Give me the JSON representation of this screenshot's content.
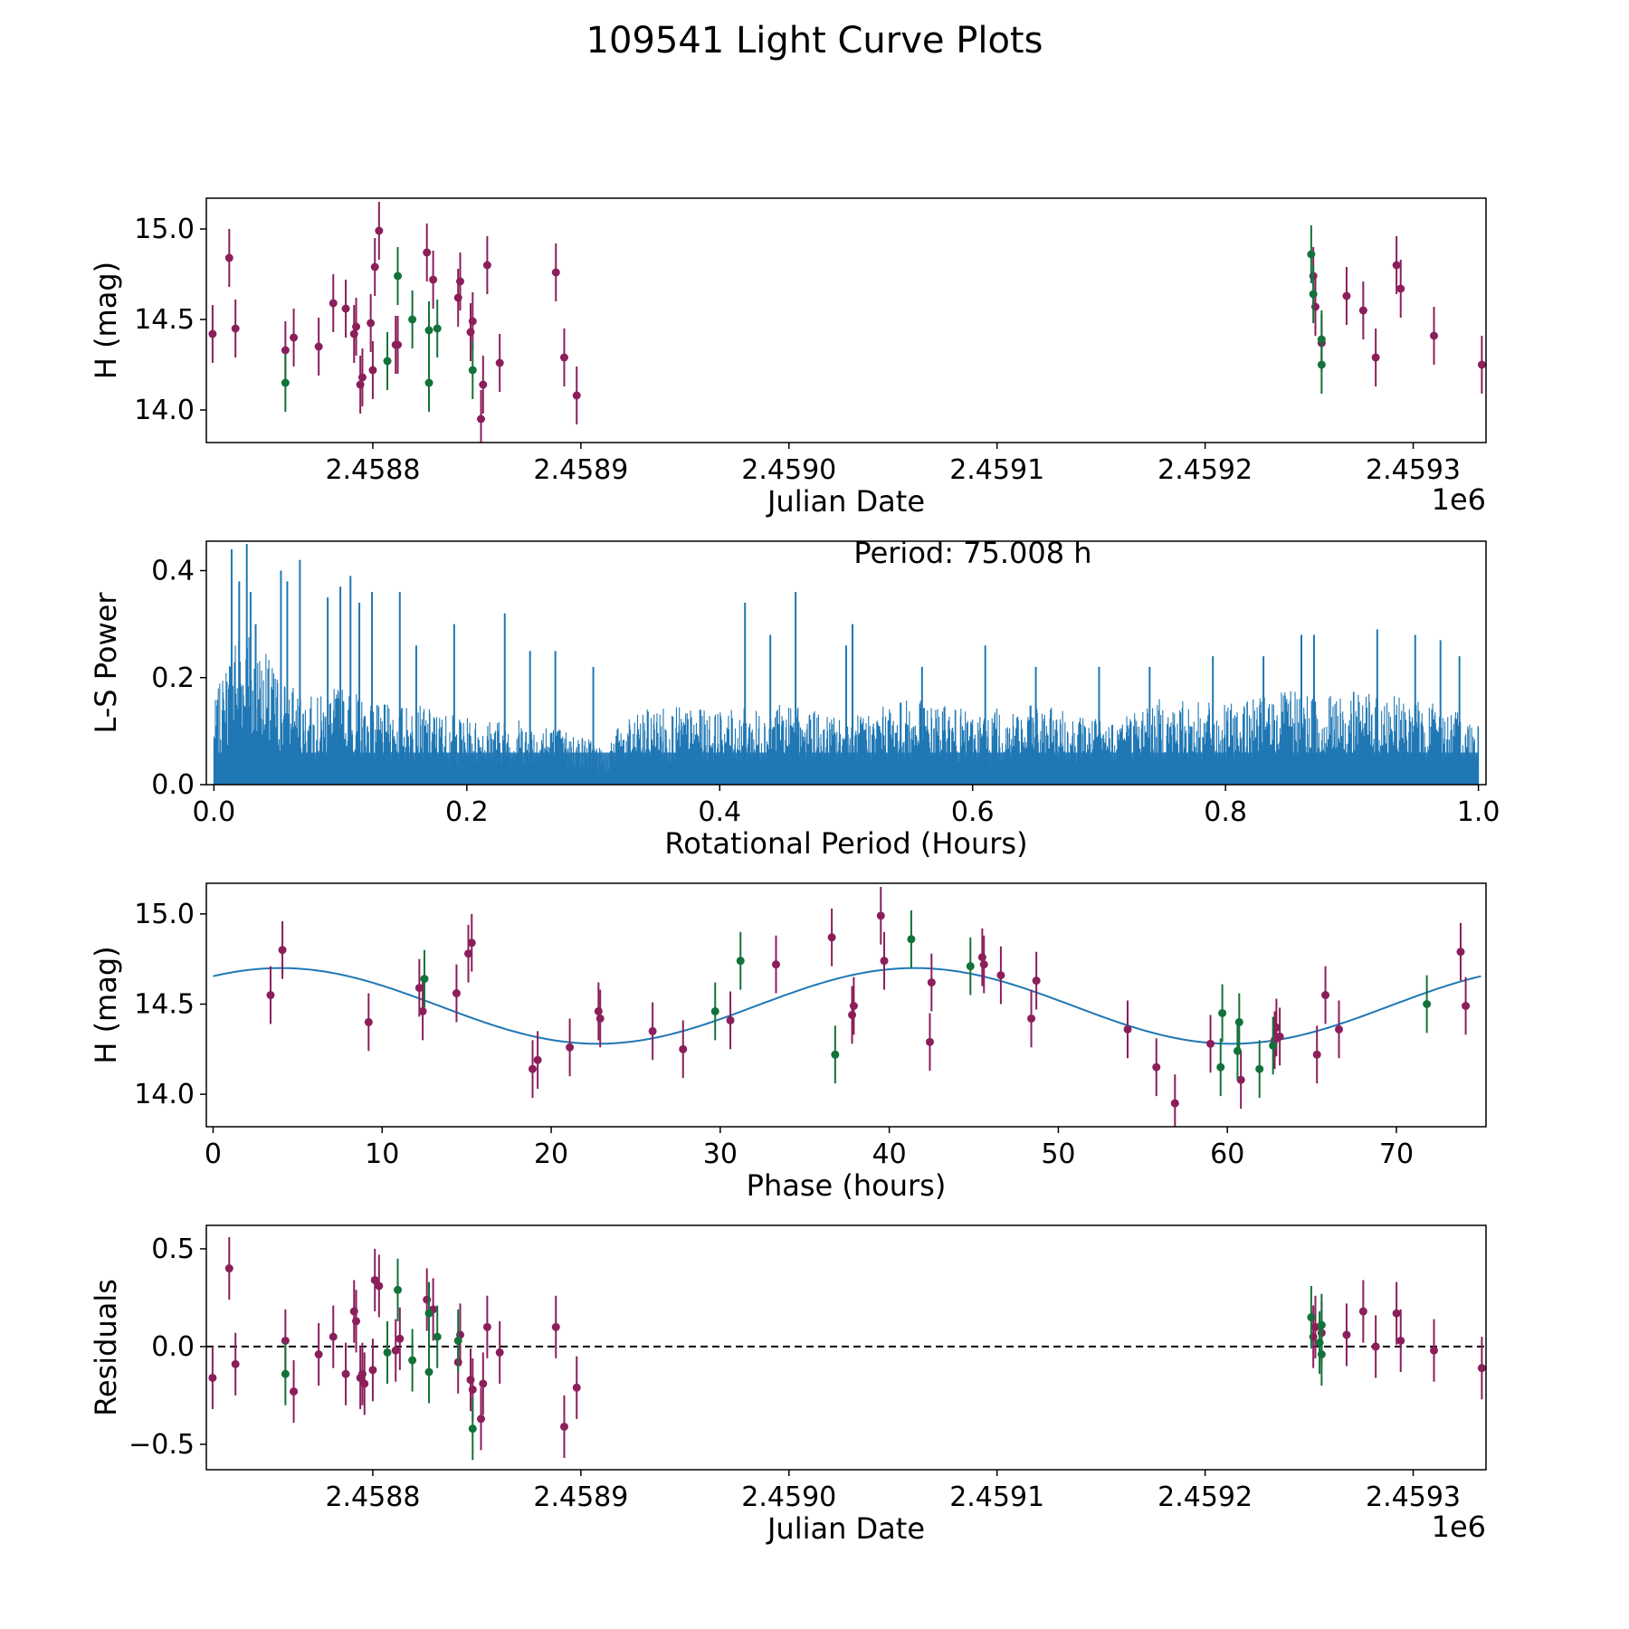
{
  "figure": {
    "title": "109541 Light Curve Plots"
  },
  "colors": {
    "red": "#8b1e5b",
    "green": "#13723a",
    "blue": "#1f77b4",
    "axis": "#000000",
    "zero_line": "#000000"
  },
  "chart_data": [
    {
      "type": "scatter",
      "name": "light-curve",
      "xlabel": "Julian Date",
      "ylabel": "H (mag)",
      "offset_label": "1e6",
      "xlim": [
        2.45872,
        2.459335
      ],
      "ylim": [
        13.82,
        15.17
      ],
      "xticks": [
        2.4588,
        2.4589,
        2.459,
        2.4591,
        2.4592,
        2.4593
      ],
      "xtick_labels": [
        "2.4588",
        "2.4589",
        "2.4590",
        "2.4591",
        "2.4592",
        "2.4593"
      ],
      "yticks": [
        14.0,
        14.5,
        15.0
      ],
      "ytick_labels": [
        "14.0",
        "14.5",
        "15.0"
      ],
      "error_bar": 0.16,
      "series": [
        {
          "name": "red",
          "color": "red",
          "points": [
            [
              2.458723,
              14.42
            ],
            [
              2.458731,
              14.84
            ],
            [
              2.458734,
              14.45
            ],
            [
              2.458758,
              14.33
            ],
            [
              2.458762,
              14.4
            ],
            [
              2.458774,
              14.35
            ],
            [
              2.458781,
              14.59
            ],
            [
              2.458787,
              14.56
            ],
            [
              2.458791,
              14.42
            ],
            [
              2.458792,
              14.46
            ],
            [
              2.458794,
              14.14
            ],
            [
              2.458795,
              14.18
            ],
            [
              2.458799,
              14.48
            ],
            [
              2.4588,
              14.22
            ],
            [
              2.458801,
              14.79
            ],
            [
              2.458803,
              14.99
            ],
            [
              2.458811,
              14.36
            ],
            [
              2.458812,
              14.36
            ],
            [
              2.458826,
              14.87
            ],
            [
              2.458829,
              14.72
            ],
            [
              2.458841,
              14.62
            ],
            [
              2.458842,
              14.71
            ],
            [
              2.458847,
              14.43
            ],
            [
              2.458848,
              14.49
            ],
            [
              2.458852,
              13.95
            ],
            [
              2.458853,
              14.14
            ],
            [
              2.458855,
              14.8
            ],
            [
              2.458861,
              14.26
            ],
            [
              2.458888,
              14.76
            ],
            [
              2.458892,
              14.29
            ],
            [
              2.458898,
              14.08
            ],
            [
              2.459252,
              14.74
            ],
            [
              2.459253,
              14.57
            ],
            [
              2.459256,
              14.37
            ],
            [
              2.459268,
              14.63
            ],
            [
              2.459276,
              14.55
            ],
            [
              2.459282,
              14.29
            ],
            [
              2.459292,
              14.8
            ],
            [
              2.459294,
              14.67
            ],
            [
              2.45931,
              14.41
            ],
            [
              2.459333,
              14.25
            ]
          ]
        },
        {
          "name": "green",
          "color": "green",
          "points": [
            [
              2.458758,
              14.15
            ],
            [
              2.458807,
              14.27
            ],
            [
              2.458812,
              14.74
            ],
            [
              2.458819,
              14.5
            ],
            [
              2.458827,
              14.44
            ],
            [
              2.458827,
              14.15
            ],
            [
              2.458831,
              14.45
            ],
            [
              2.458848,
              14.22
            ],
            [
              2.459251,
              14.86
            ],
            [
              2.459252,
              14.64
            ],
            [
              2.459256,
              14.39
            ],
            [
              2.459256,
              14.25
            ]
          ]
        }
      ]
    },
    {
      "type": "line",
      "name": "periodogram",
      "xlabel": "Rotational Period (Hours)",
      "ylabel": "L-S Power",
      "annotation": "Period: 75.008 h",
      "xlim": [
        -0.006,
        1.006
      ],
      "ylim": [
        0,
        0.455
      ],
      "xticks": [
        0.0,
        0.2,
        0.4,
        0.6,
        0.8,
        1.0
      ],
      "xtick_labels": [
        "0.0",
        "0.2",
        "0.4",
        "0.6",
        "0.8",
        "1.0"
      ],
      "yticks": [
        0.0,
        0.2,
        0.4
      ],
      "ytick_labels": [
        "0.0",
        "0.2",
        "0.4"
      ],
      "color": "blue",
      "envelope": [
        [
          0.0,
          0.12
        ],
        [
          0.02,
          0.26
        ],
        [
          0.04,
          0.2
        ],
        [
          0.06,
          0.15
        ],
        [
          0.08,
          0.13
        ],
        [
          0.1,
          0.15
        ],
        [
          0.13,
          0.12
        ],
        [
          0.16,
          0.12
        ],
        [
          0.2,
          0.1
        ],
        [
          0.25,
          0.1
        ],
        [
          0.3,
          0.07
        ],
        [
          0.31,
          0.05
        ],
        [
          0.32,
          0.09
        ],
        [
          0.35,
          0.12
        ],
        [
          0.4,
          0.11
        ],
        [
          0.45,
          0.12
        ],
        [
          0.5,
          0.1
        ],
        [
          0.55,
          0.13
        ],
        [
          0.6,
          0.11
        ],
        [
          0.65,
          0.12
        ],
        [
          0.7,
          0.1
        ],
        [
          0.75,
          0.13
        ],
        [
          0.8,
          0.12
        ],
        [
          0.85,
          0.14
        ],
        [
          0.9,
          0.14
        ],
        [
          0.95,
          0.13
        ],
        [
          1.0,
          0.1
        ]
      ],
      "peaks": [
        [
          0.014,
          0.44
        ],
        [
          0.02,
          0.38
        ],
        [
          0.026,
          0.45
        ],
        [
          0.029,
          0.36
        ],
        [
          0.033,
          0.3
        ],
        [
          0.053,
          0.4
        ],
        [
          0.058,
          0.38
        ],
        [
          0.068,
          0.42
        ],
        [
          0.09,
          0.35
        ],
        [
          0.1,
          0.37
        ],
        [
          0.108,
          0.39
        ],
        [
          0.115,
          0.34
        ],
        [
          0.125,
          0.36
        ],
        [
          0.147,
          0.36
        ],
        [
          0.16,
          0.26
        ],
        [
          0.19,
          0.3
        ],
        [
          0.23,
          0.32
        ],
        [
          0.25,
          0.25
        ],
        [
          0.27,
          0.25
        ],
        [
          0.3,
          0.22
        ],
        [
          0.42,
          0.34
        ],
        [
          0.44,
          0.28
        ],
        [
          0.46,
          0.36
        ],
        [
          0.5,
          0.26
        ],
        [
          0.505,
          0.3
        ],
        [
          0.56,
          0.22
        ],
        [
          0.61,
          0.26
        ],
        [
          0.65,
          0.22
        ],
        [
          0.7,
          0.22
        ],
        [
          0.74,
          0.22
        ],
        [
          0.79,
          0.24
        ],
        [
          0.83,
          0.24
        ],
        [
          0.86,
          0.28
        ],
        [
          0.87,
          0.28
        ],
        [
          0.92,
          0.29
        ],
        [
          0.95,
          0.28
        ],
        [
          0.97,
          0.27
        ],
        [
          0.985,
          0.24
        ]
      ]
    },
    {
      "type": "scatter",
      "name": "phase-folded",
      "xlabel": "Phase (hours)",
      "ylabel": "H (mag)",
      "xlim": [
        -0.4,
        75.3
      ],
      "ylim": [
        13.82,
        15.17
      ],
      "xticks": [
        0,
        10,
        20,
        30,
        40,
        50,
        60,
        70
      ],
      "xtick_labels": [
        "0",
        "10",
        "20",
        "30",
        "40",
        "50",
        "60",
        "70"
      ],
      "yticks": [
        14.0,
        14.5,
        15.0
      ],
      "ytick_labels": [
        "14.0",
        "14.5",
        "15.0"
      ],
      "error_bar": 0.16,
      "model": {
        "mean": 14.49,
        "amplitude": 0.21,
        "period": 37.5,
        "peak_phase": 4.0
      },
      "series": [
        {
          "name": "red",
          "color": "red",
          "points": [
            [
              3.4,
              14.55
            ],
            [
              4.1,
              14.8
            ],
            [
              9.2,
              14.4
            ],
            [
              12.2,
              14.59
            ],
            [
              12.4,
              14.46
            ],
            [
              14.4,
              14.56
            ],
            [
              15.1,
              14.78
            ],
            [
              15.3,
              14.84
            ],
            [
              18.9,
              14.14
            ],
            [
              19.2,
              14.19
            ],
            [
              21.1,
              14.26
            ],
            [
              22.8,
              14.46
            ],
            [
              22.9,
              14.42
            ],
            [
              26.0,
              14.35
            ],
            [
              27.8,
              14.25
            ],
            [
              30.6,
              14.41
            ],
            [
              33.3,
              14.72
            ],
            [
              36.6,
              14.87
            ],
            [
              37.8,
              14.44
            ],
            [
              37.9,
              14.49
            ],
            [
              39.5,
              14.99
            ],
            [
              39.7,
              14.74
            ],
            [
              42.4,
              14.29
            ],
            [
              42.5,
              14.62
            ],
            [
              45.5,
              14.76
            ],
            [
              45.6,
              14.72
            ],
            [
              46.6,
              14.66
            ],
            [
              48.4,
              14.42
            ],
            [
              48.7,
              14.63
            ],
            [
              54.1,
              14.36
            ],
            [
              55.8,
              14.15
            ],
            [
              56.9,
              13.95
            ],
            [
              59.0,
              14.28
            ],
            [
              60.8,
              14.08
            ],
            [
              62.8,
              14.3
            ],
            [
              62.9,
              14.37
            ],
            [
              63.1,
              14.32
            ],
            [
              65.3,
              14.22
            ],
            [
              65.8,
              14.55
            ],
            [
              66.6,
              14.36
            ],
            [
              73.8,
              14.79
            ],
            [
              74.1,
              14.49
            ]
          ]
        },
        {
          "name": "green",
          "color": "green",
          "points": [
            [
              12.5,
              14.64
            ],
            [
              29.7,
              14.46
            ],
            [
              31.2,
              14.74
            ],
            [
              36.8,
              14.22
            ],
            [
              41.3,
              14.86
            ],
            [
              44.8,
              14.71
            ],
            [
              59.6,
              14.15
            ],
            [
              59.7,
              14.45
            ],
            [
              60.6,
              14.24
            ],
            [
              60.7,
              14.4
            ],
            [
              61.9,
              14.14
            ],
            [
              62.7,
              14.27
            ],
            [
              71.8,
              14.5
            ]
          ]
        }
      ]
    },
    {
      "type": "scatter",
      "name": "residuals",
      "xlabel": "Julian Date",
      "ylabel": "Residuals",
      "offset_label": "1e6",
      "xlim": [
        2.45872,
        2.459335
      ],
      "ylim": [
        -0.63,
        0.62
      ],
      "xticks": [
        2.4588,
        2.4589,
        2.459,
        2.4591,
        2.4592,
        2.4593
      ],
      "xtick_labels": [
        "2.4588",
        "2.4589",
        "2.4590",
        "2.4591",
        "2.4592",
        "2.4593"
      ],
      "yticks": [
        -0.5,
        0.0,
        0.5
      ],
      "ytick_labels": [
        "−0.5",
        "0.0",
        "0.5"
      ],
      "error_bar": 0.16,
      "zero_line": 0.0,
      "series": [
        {
          "name": "red",
          "color": "red",
          "points": [
            [
              2.458723,
              -0.16
            ],
            [
              2.458731,
              0.4
            ],
            [
              2.458734,
              -0.09
            ],
            [
              2.458758,
              0.03
            ],
            [
              2.458762,
              -0.23
            ],
            [
              2.458774,
              -0.04
            ],
            [
              2.458781,
              0.05
            ],
            [
              2.458787,
              -0.14
            ],
            [
              2.458791,
              0.18
            ],
            [
              2.458792,
              0.13
            ],
            [
              2.458794,
              -0.16
            ],
            [
              2.458795,
              -0.14
            ],
            [
              2.458796,
              -0.19
            ],
            [
              2.4588,
              -0.12
            ],
            [
              2.458801,
              0.34
            ],
            [
              2.458803,
              0.31
            ],
            [
              2.458811,
              -0.02
            ],
            [
              2.458813,
              0.04
            ],
            [
              2.458826,
              0.24
            ],
            [
              2.458829,
              0.19
            ],
            [
              2.458841,
              -0.08
            ],
            [
              2.458842,
              0.06
            ],
            [
              2.458847,
              -0.17
            ],
            [
              2.458848,
              -0.22
            ],
            [
              2.458852,
              -0.37
            ],
            [
              2.458853,
              -0.19
            ],
            [
              2.458855,
              0.1
            ],
            [
              2.458861,
              -0.03
            ],
            [
              2.458888,
              0.1
            ],
            [
              2.458892,
              -0.41
            ],
            [
              2.458898,
              -0.21
            ],
            [
              2.459252,
              0.05
            ],
            [
              2.459253,
              0.1
            ],
            [
              2.459256,
              0.07
            ],
            [
              2.459268,
              0.06
            ],
            [
              2.459276,
              0.18
            ],
            [
              2.459282,
              0.0
            ],
            [
              2.459292,
              0.17
            ],
            [
              2.459294,
              0.03
            ],
            [
              2.45931,
              -0.02
            ],
            [
              2.459333,
              -0.11
            ]
          ]
        },
        {
          "name": "green",
          "color": "green",
          "points": [
            [
              2.458758,
              -0.14
            ],
            [
              2.458807,
              -0.03
            ],
            [
              2.458812,
              0.29
            ],
            [
              2.458819,
              -0.07
            ],
            [
              2.458827,
              -0.13
            ],
            [
              2.458827,
              0.17
            ],
            [
              2.458831,
              0.05
            ],
            [
              2.458841,
              0.03
            ],
            [
              2.458848,
              -0.42
            ],
            [
              2.459251,
              0.15
            ],
            [
              2.459255,
              0.02
            ],
            [
              2.459256,
              0.11
            ],
            [
              2.459256,
              -0.04
            ]
          ]
        }
      ]
    }
  ]
}
